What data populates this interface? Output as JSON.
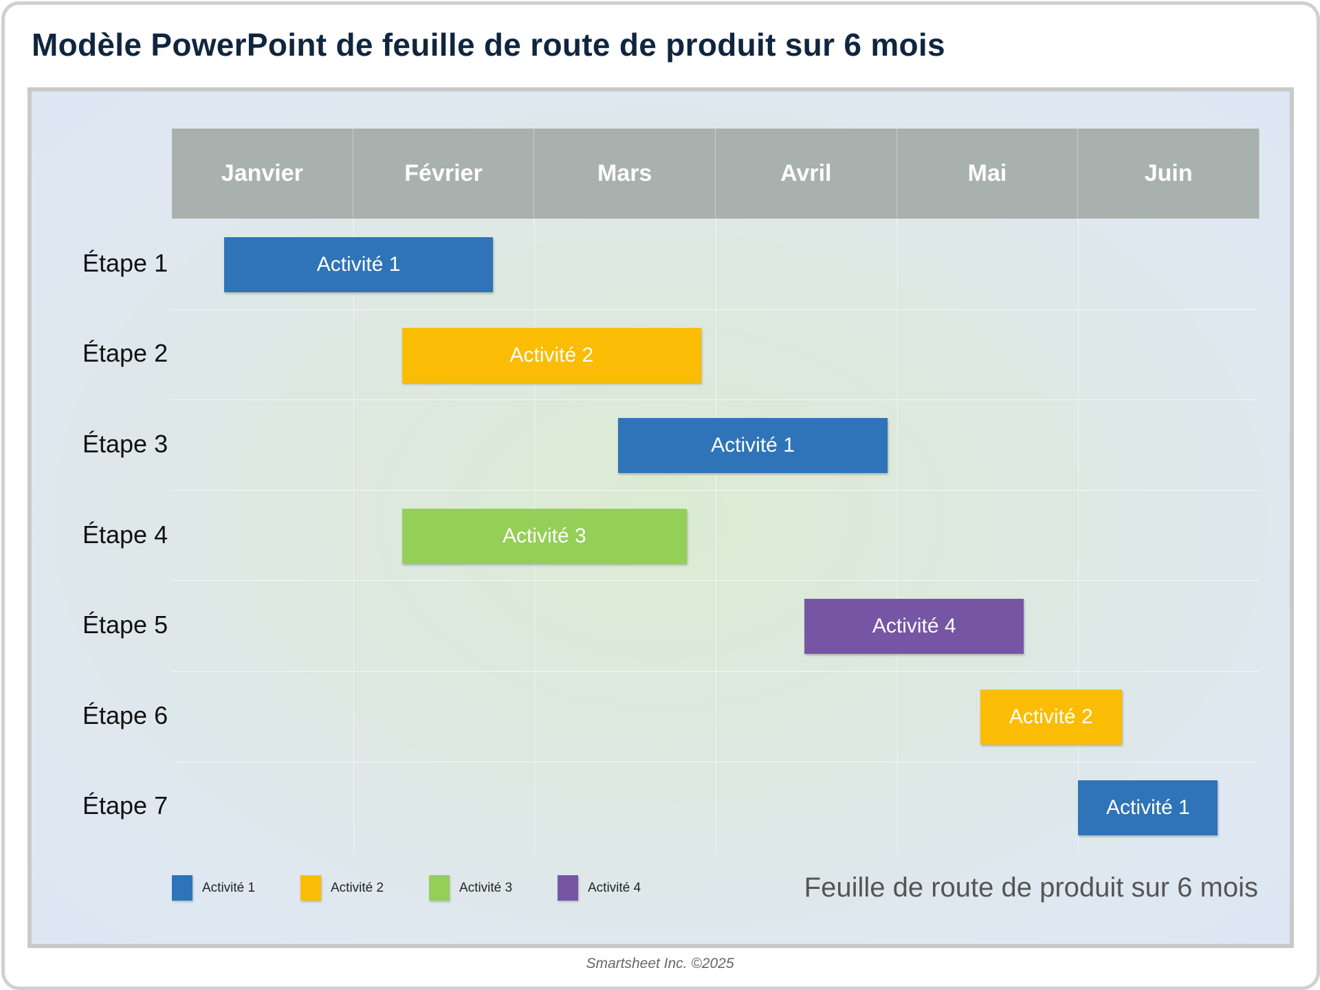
{
  "title": "Modèle PowerPoint de feuille de route de produit sur 6 mois",
  "months": [
    "Janvier",
    "Février",
    "Mars",
    "Avril",
    "Mai",
    "Juin"
  ],
  "stages": [
    "Étape 1",
    "Étape 2",
    "Étape 3",
    "Étape 4",
    "Étape 5",
    "Étape 6",
    "Étape 7"
  ],
  "activities": [
    {
      "stage": 0,
      "label": "Activité 1",
      "type": 0,
      "start_month": 0.29,
      "end_month": 1.77
    },
    {
      "stage": 1,
      "label": "Activité 2",
      "type": 1,
      "start_month": 1.27,
      "end_month": 2.92
    },
    {
      "stage": 2,
      "label": "Activité 1",
      "type": 0,
      "start_month": 2.46,
      "end_month": 3.95
    },
    {
      "stage": 3,
      "label": "Activité 3",
      "type": 2,
      "start_month": 1.27,
      "end_month": 2.84
    },
    {
      "stage": 4,
      "label": "Activité 4",
      "type": 3,
      "start_month": 3.49,
      "end_month": 4.7
    },
    {
      "stage": 5,
      "label": "Activité 2",
      "type": 1,
      "start_month": 4.46,
      "end_month": 5.24
    },
    {
      "stage": 6,
      "label": "Activité 1",
      "type": 0,
      "start_month": 5.0,
      "end_month": 5.77
    }
  ],
  "legend": [
    {
      "label": "Activité 1",
      "color": "#2f74b8"
    },
    {
      "label": "Activité 2",
      "color": "#fbbc05"
    },
    {
      "label": "Activité 3",
      "color": "#94cf57"
    },
    {
      "label": "Activité 4",
      "color": "#7656a4"
    }
  ],
  "subtitle": "Feuille de route de produit sur 6 mois",
  "footer": "Smartsheet Inc. ©2025"
}
